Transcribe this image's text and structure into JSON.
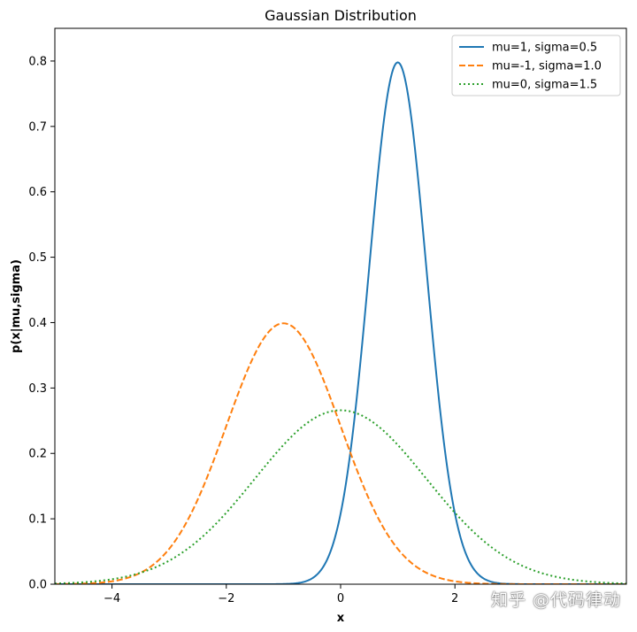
{
  "chart_data": {
    "type": "line",
    "title": "Gaussian Distribution",
    "xlabel": "x",
    "ylabel": "p(x|mu,sigma)",
    "xlim": [
      -5,
      5
    ],
    "ylim": [
      0,
      0.85
    ],
    "xticks": [
      -4,
      -2,
      0,
      2
    ],
    "xtick_labels": [
      "−4",
      "−2",
      "0",
      "2"
    ],
    "yticks": [
      0.0,
      0.1,
      0.2,
      0.3,
      0.4,
      0.5,
      0.6,
      0.7,
      0.8
    ],
    "ytick_labels": [
      "0.0",
      "0.1",
      "0.2",
      "0.3",
      "0.4",
      "0.5",
      "0.6",
      "0.7",
      "0.8"
    ],
    "grid": false,
    "legend_position": "top-right",
    "series": [
      {
        "name": "mu=1, sigma=0.5",
        "mu": 1,
        "sigma": 0.5,
        "color": "#1f77b4",
        "style": "solid"
      },
      {
        "name": "mu=-1, sigma=1.0",
        "mu": -1,
        "sigma": 1.0,
        "color": "#ff7f0e",
        "style": "dashed"
      },
      {
        "name": "mu=0, sigma=1.5",
        "mu": 0,
        "sigma": 1.5,
        "color": "#2ca02c",
        "style": "dotted"
      }
    ]
  },
  "watermark": "知乎 @代码律动"
}
